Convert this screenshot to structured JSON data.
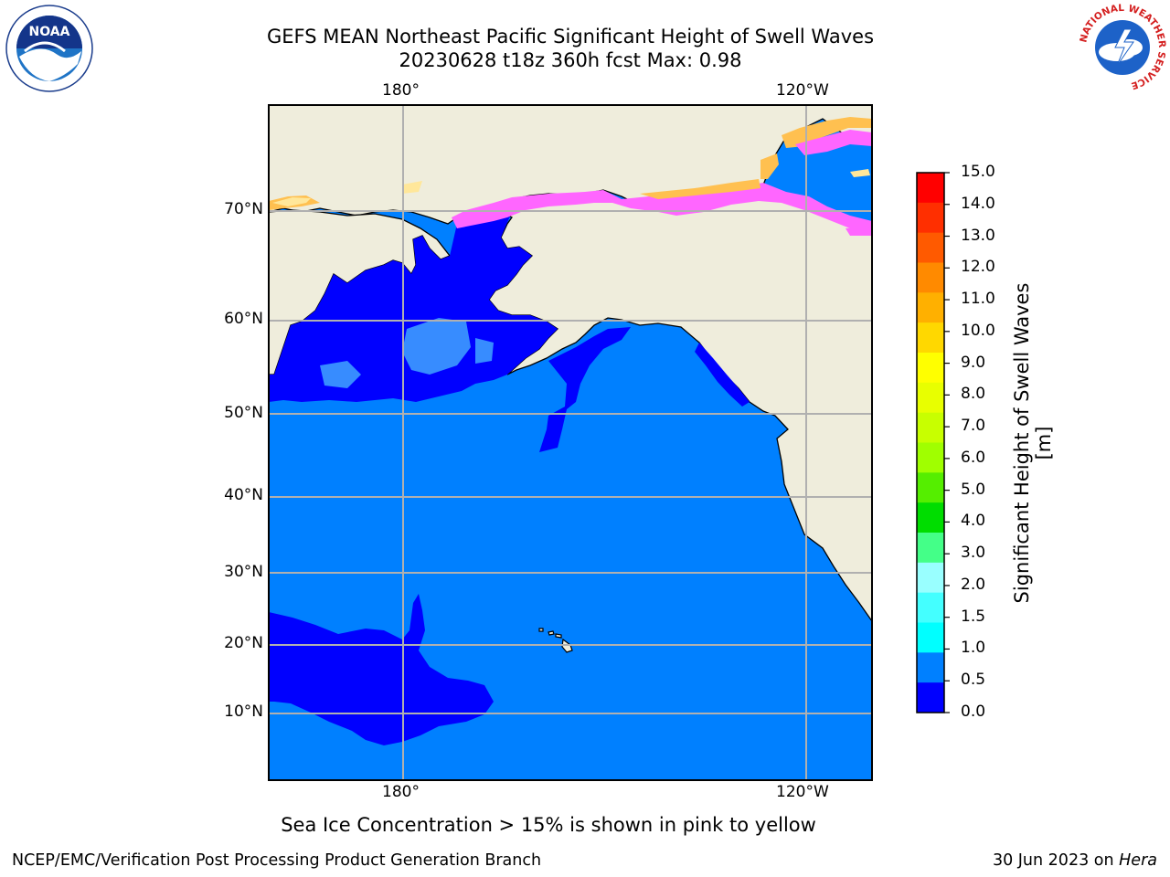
{
  "header": {
    "title_line1": "GEFS MEAN Northeast Pacific Significant Height of Swell Waves",
    "title_line2": "20230628 t18z 360h fcst   Max: 0.98"
  },
  "map": {
    "top_lon_labels": [
      "180°",
      "120°W"
    ],
    "bottom_lon_labels": [
      "180°",
      "120°W"
    ],
    "lat_labels": [
      "70°N",
      "60°N",
      "50°N",
      "40°N",
      "30°N",
      "20°N",
      "10°N"
    ],
    "colors": {
      "land": "#efeddc",
      "water_low": "#0000ff",
      "water_mid": "#0080ff",
      "water_light": "#3d9bff",
      "grid": "#b0b0b0",
      "ice_pink": "#ff66ff",
      "ice_orange": "#ffc050",
      "ice_yellow": "#ffe79a"
    }
  },
  "colorbar": {
    "title": "Significant Height of Swell Waves [m]",
    "ticks": [
      "15.0",
      "14.0",
      "13.0",
      "12.0",
      "11.0",
      "10.0",
      "9.0",
      "8.0",
      "7.0",
      "6.0",
      "5.0",
      "4.0",
      "3.0",
      "2.0",
      "1.5",
      "1.0",
      "0.5",
      "0.0"
    ],
    "segment_colors_top_to_bottom": [
      "#ff0000",
      "#ff2f00",
      "#ff5a00",
      "#ff8a00",
      "#ffb000",
      "#ffd800",
      "#ffff00",
      "#e8ff00",
      "#c8ff00",
      "#a0ff00",
      "#55ee00",
      "#00dd00",
      "#44ff88",
      "#99ffff",
      "#44ffff",
      "#00ffff",
      "#0080ff",
      "#0000ff"
    ]
  },
  "logos": {
    "left": "NOAA",
    "right_ring": "NATIONAL WEATHER SERVICE"
  },
  "footer": {
    "note": "Sea Ice Concentration > 15% is shown in pink to yellow",
    "credit": "NCEP/EMC/Verification Post Processing Product Generation Branch",
    "date_prefix": "30 Jun 2023 on ",
    "date_machine": "Hera"
  }
}
